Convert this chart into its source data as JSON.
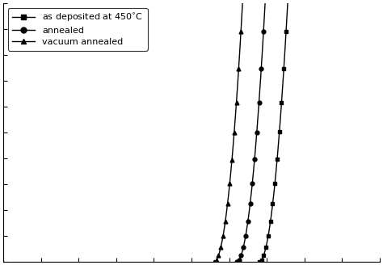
{
  "title": "",
  "xlabel": "",
  "ylabel": "",
  "background_color": "#ffffff",
  "legend_labels": [
    "as deposited at 450°C",
    "annealed",
    "vacuum annealed"
  ],
  "line_color": "#000000",
  "xlim": [
    1.5,
    4.0
  ],
  "ylim": [
    0,
    25
  ],
  "series": [
    {
      "onset": 3.2,
      "scale": 700.0,
      "marker": "s",
      "label": "as deposited at 450$^{\\circ}$C"
    },
    {
      "onset": 3.05,
      "scale": 700.0,
      "marker": "o",
      "label": "annealed"
    },
    {
      "onset": 2.9,
      "scale": 700.0,
      "marker": "^",
      "label": "vacuum annealed"
    }
  ]
}
